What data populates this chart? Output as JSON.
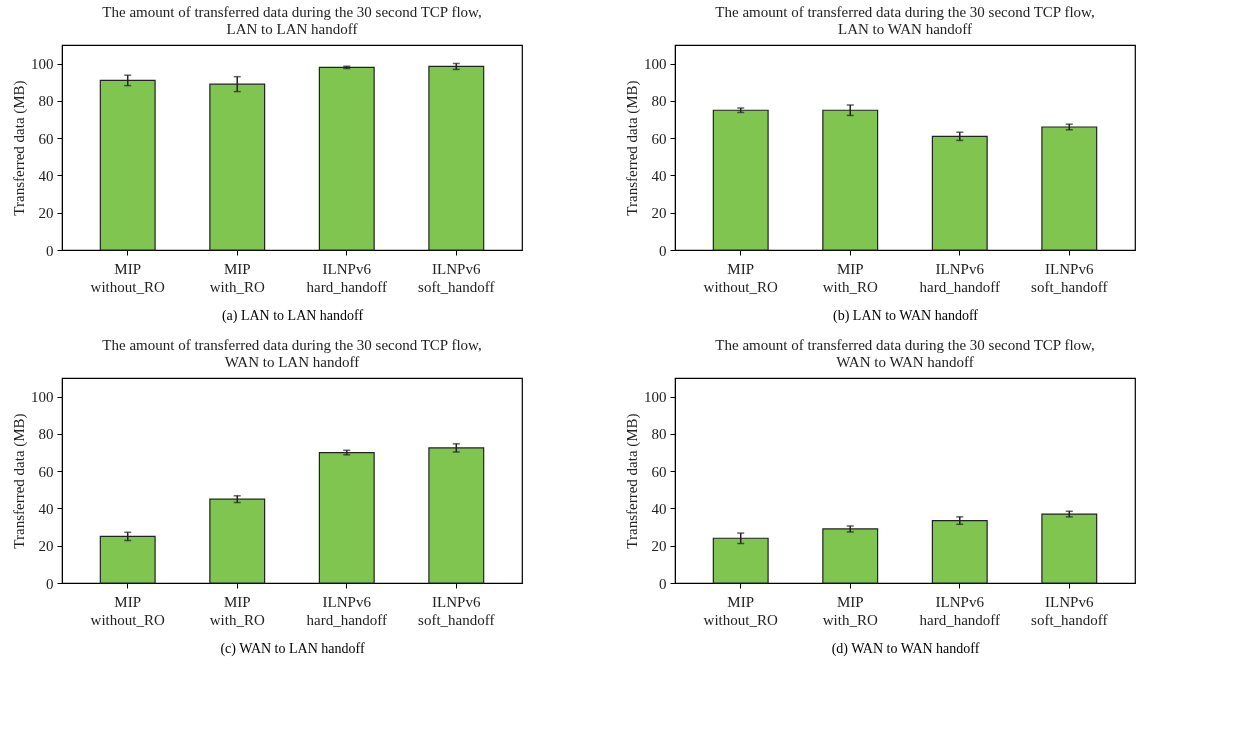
{
  "chart_data": [
    {
      "type": "bar",
      "title": "The amount of transferred data during the 30 second TCP flow,\nLAN to LAN handoff",
      "ylabel": "Transferred data (MB)",
      "categories": [
        "MIP\nwithout_RO",
        "MIP\nwith_RO",
        "ILNPv6\nhard_handoff",
        "ILNPv6\nsoft_handoff"
      ],
      "values": [
        91,
        89,
        98,
        98.5
      ],
      "errors": [
        2.8,
        4,
        0.6,
        1.6
      ],
      "color": "#7fc550",
      "ylim": [
        0,
        110
      ],
      "yticks": [
        0,
        20,
        40,
        60,
        80,
        100
      ],
      "annotations": [
        "(a)  LAN to LAN handoff"
      ]
    },
    {
      "type": "bar",
      "title": "The amount of transferred data during the 30 second TCP flow,\nLAN to WAN handoff",
      "ylabel": "Transferred data (MB)",
      "categories": [
        "MIP\nwithout_RO",
        "MIP\nwith_RO",
        "ILNPv6\nhard_handoff",
        "ILNPv6\nsoft_handoff"
      ],
      "values": [
        75,
        75,
        61,
        66
      ],
      "errors": [
        1.2,
        2.8,
        2.2,
        1.5
      ],
      "color": "#7fc550",
      "ylim": [
        0,
        110
      ],
      "yticks": [
        0,
        20,
        40,
        60,
        80,
        100
      ],
      "annotations": [
        "(b)  LAN to WAN handoff"
      ]
    },
    {
      "type": "bar",
      "title": "The amount of transferred data during the 30 second TCP flow,\nWAN to LAN handoff",
      "ylabel": "Transferred data (MB)",
      "categories": [
        "MIP\nwithout_RO",
        "MIP\nwith_RO",
        "ILNPv6\nhard_handoff",
        "ILNPv6\nsoft_handoff"
      ],
      "values": [
        25,
        45,
        70,
        72.5
      ],
      "errors": [
        2.2,
        1.8,
        1.2,
        2.2
      ],
      "color": "#7fc550",
      "ylim": [
        0,
        110
      ],
      "yticks": [
        0,
        20,
        40,
        60,
        80,
        100
      ],
      "annotations": [
        "(c)  WAN to LAN handoff"
      ]
    },
    {
      "type": "bar",
      "title": "The amount of transferred data during the 30 second TCP flow,\nWAN to WAN handoff",
      "ylabel": "Transferred data (MB)",
      "categories": [
        "MIP\nwithout_RO",
        "MIP\nwith_RO",
        "ILNPv6\nhard_handoff",
        "ILNPv6\nsoft_handoff"
      ],
      "values": [
        24,
        29,
        33.5,
        37
      ],
      "errors": [
        2.8,
        1.6,
        2,
        1.5
      ],
      "color": "#7fc550",
      "ylim": [
        0,
        110
      ],
      "yticks": [
        0,
        20,
        40,
        60,
        80,
        100
      ],
      "annotations": [
        "(d)  WAN to WAN handoff"
      ]
    }
  ]
}
